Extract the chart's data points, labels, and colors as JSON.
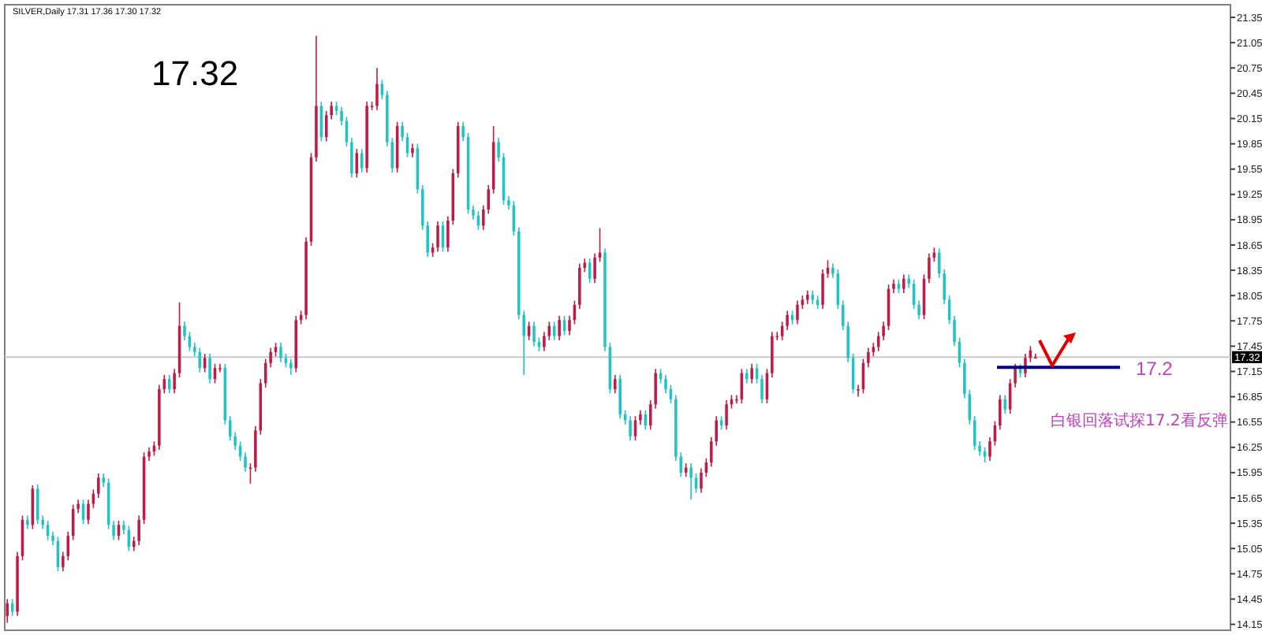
{
  "chart_data": {
    "type": "candlestick",
    "title": "SILVER,Daily 17.31 17.36 17.30 17.32",
    "subtitle": "17.32",
    "categories": [
      null,
      null,
      null,
      null,
      null,
      null,
      null,
      null,
      null,
      null,
      null,
      null,
      null,
      null,
      null,
      null,
      null,
      null,
      null,
      null,
      null,
      null,
      null,
      null,
      null,
      null,
      null,
      null,
      null,
      null,
      null,
      null,
      null,
      null,
      null,
      null,
      null,
      null,
      null,
      null,
      null,
      null,
      null,
      null,
      null,
      null,
      null,
      null,
      null,
      null,
      null,
      null,
      null,
      null,
      null,
      null,
      null,
      null,
      null,
      null,
      null,
      null,
      null,
      null,
      null,
      null,
      null,
      null,
      null,
      null,
      null,
      null,
      null,
      null,
      null,
      null,
      null,
      null,
      null,
      null,
      null,
      null,
      null,
      null,
      null,
      null,
      null,
      null,
      null,
      null,
      null,
      null,
      null,
      null,
      null,
      null,
      null,
      null,
      null,
      null,
      null,
      null,
      null,
      null,
      null,
      null,
      null,
      null,
      null,
      null,
      null,
      null,
      null,
      null,
      null,
      null,
      null,
      null,
      null,
      null,
      null,
      null,
      null,
      null,
      null,
      null,
      null,
      null,
      null,
      null,
      null,
      null,
      null,
      null,
      null,
      null,
      null,
      null,
      null,
      null,
      null,
      null,
      null,
      null,
      null,
      null,
      null,
      null,
      null,
      null,
      null,
      null,
      null,
      null,
      null,
      null,
      null,
      null,
      null,
      null,
      null,
      null,
      null,
      null,
      null,
      null,
      null,
      null,
      null,
      null,
      null,
      null,
      null,
      null,
      null,
      null,
      null,
      null,
      null,
      null,
      null,
      null,
      null,
      null,
      null,
      null,
      null,
      null,
      null,
      null,
      null,
      null,
      null,
      null,
      null,
      null,
      null,
      null,
      null,
      null,
      null,
      null,
      null,
      null,
      null,
      null,
      null,
      null,
      null,
      null,
      null,
      null,
      null,
      null,
      null,
      null,
      null,
      null,
      null,
      null,
      null,
      null,
      null,
      null,
      null,
      null,
      null,
      null,
      null,
      null,
      null,
      null,
      null,
      null,
      null,
      null,
      null,
      null,
      null,
      null,
      null,
      null
    ],
    "ohlc": [
      [
        14.25,
        14.45,
        14.17,
        14.4
      ],
      [
        14.4,
        14.45,
        14.25,
        14.3
      ],
      [
        14.3,
        15.01,
        14.25,
        14.96
      ],
      [
        14.96,
        15.44,
        14.91,
        15.39
      ],
      [
        15.39,
        15.44,
        15.28,
        15.33
      ],
      [
        15.33,
        15.8,
        15.28,
        15.76
      ],
      [
        15.76,
        15.81,
        15.34,
        15.39
      ],
      [
        15.39,
        15.44,
        15.28,
        15.33
      ],
      [
        15.33,
        15.38,
        15.15,
        15.2
      ],
      [
        15.2,
        15.25,
        15.09,
        15.14
      ],
      [
        15.14,
        15.19,
        14.78,
        14.83
      ],
      [
        14.83,
        15.01,
        14.78,
        14.96
      ],
      [
        14.96,
        15.25,
        14.91,
        15.2
      ],
      [
        15.2,
        15.57,
        15.15,
        15.52
      ],
      [
        15.52,
        15.63,
        15.47,
        15.58
      ],
      [
        15.58,
        15.63,
        15.34,
        15.39
      ],
      [
        15.39,
        15.63,
        15.34,
        15.58
      ],
      [
        15.58,
        15.75,
        15.53,
        15.7
      ],
      [
        15.7,
        15.94,
        15.65,
        15.89
      ],
      [
        15.89,
        15.94,
        15.78,
        15.83
      ],
      [
        15.83,
        15.88,
        15.28,
        15.33
      ],
      [
        15.33,
        15.38,
        15.15,
        15.2
      ],
      [
        15.2,
        15.38,
        15.15,
        15.33
      ],
      [
        15.33,
        15.38,
        15.22,
        15.27
      ],
      [
        15.27,
        15.32,
        15.02,
        15.07
      ],
      [
        15.07,
        15.19,
        15.02,
        15.14
      ],
      [
        15.14,
        15.44,
        15.09,
        15.39
      ],
      [
        15.39,
        16.19,
        15.34,
        16.14
      ],
      [
        16.14,
        16.25,
        16.09,
        16.2
      ],
      [
        16.2,
        16.32,
        16.15,
        16.27
      ],
      [
        16.27,
        16.99,
        16.22,
        16.94
      ],
      [
        16.94,
        17.11,
        16.89,
        17.06
      ],
      [
        17.06,
        17.11,
        16.89,
        16.94
      ],
      [
        16.94,
        17.18,
        16.89,
        17.13
      ],
      [
        17.13,
        17.97,
        17.08,
        17.69
      ],
      [
        17.69,
        17.74,
        17.52,
        17.57
      ],
      [
        17.57,
        17.62,
        17.39,
        17.44
      ],
      [
        17.44,
        17.49,
        17.33,
        17.38
      ],
      [
        17.38,
        17.43,
        17.14,
        17.19
      ],
      [
        17.19,
        17.36,
        17.14,
        17.31
      ],
      [
        17.31,
        17.36,
        17.01,
        17.06
      ],
      [
        17.06,
        17.24,
        17.01,
        17.19
      ],
      [
        17.19,
        17.24,
        17.14,
        17.19
      ],
      [
        17.19,
        17.24,
        16.52,
        16.57
      ],
      [
        16.57,
        16.62,
        16.33,
        16.38
      ],
      [
        16.38,
        16.43,
        16.22,
        16.27
      ],
      [
        16.27,
        16.32,
        16.09,
        16.14
      ],
      [
        16.14,
        16.19,
        15.96,
        16.01
      ],
      [
        16.01,
        16.06,
        15.82,
        16.01
      ],
      [
        16.01,
        16.5,
        15.96,
        16.45
      ],
      [
        16.45,
        17.06,
        16.4,
        17.01
      ],
      [
        17.01,
        17.3,
        16.96,
        17.25
      ],
      [
        17.25,
        17.43,
        17.2,
        17.38
      ],
      [
        17.38,
        17.49,
        17.33,
        17.44
      ],
      [
        17.44,
        17.49,
        17.26,
        17.31
      ],
      [
        17.31,
        17.36,
        17.2,
        17.25
      ],
      [
        17.25,
        17.3,
        17.11,
        17.19
      ],
      [
        17.19,
        17.81,
        17.14,
        17.76
      ],
      [
        17.76,
        17.87,
        17.71,
        17.82
      ],
      [
        17.82,
        18.74,
        17.77,
        18.69
      ],
      [
        18.69,
        19.74,
        18.64,
        19.69
      ],
      [
        19.69,
        21.13,
        19.64,
        20.3
      ],
      [
        20.3,
        20.35,
        19.88,
        19.93
      ],
      [
        19.93,
        20.24,
        19.88,
        20.19
      ],
      [
        20.19,
        20.35,
        20.14,
        20.3
      ],
      [
        20.3,
        20.35,
        20.19,
        20.24
      ],
      [
        20.24,
        20.29,
        20.07,
        20.12
      ],
      [
        20.12,
        20.17,
        19.82,
        19.87
      ],
      [
        19.87,
        19.92,
        19.45,
        19.5
      ],
      [
        19.5,
        19.79,
        19.45,
        19.74
      ],
      [
        19.74,
        19.79,
        19.51,
        19.56
      ],
      [
        19.56,
        20.35,
        19.51,
        20.3
      ],
      [
        20.3,
        20.35,
        20.25,
        20.3
      ],
      [
        20.3,
        20.75,
        20.25,
        20.56
      ],
      [
        20.56,
        20.61,
        20.38,
        20.43
      ],
      [
        20.43,
        20.48,
        19.82,
        19.87
      ],
      [
        19.87,
        19.92,
        19.51,
        19.56
      ],
      [
        19.56,
        20.11,
        19.51,
        20.06
      ],
      [
        20.06,
        20.11,
        19.88,
        19.93
      ],
      [
        19.93,
        19.98,
        19.69,
        19.74
      ],
      [
        19.74,
        19.85,
        19.69,
        19.8
      ],
      [
        19.8,
        19.85,
        19.26,
        19.31
      ],
      [
        19.31,
        19.36,
        18.83,
        18.88
      ],
      [
        18.88,
        18.93,
        18.51,
        18.56
      ],
      [
        18.56,
        18.67,
        18.51,
        18.62
      ],
      [
        18.62,
        18.93,
        18.57,
        18.88
      ],
      [
        18.88,
        18.93,
        18.57,
        18.62
      ],
      [
        18.62,
        18.99,
        18.57,
        18.94
      ],
      [
        18.94,
        19.55,
        18.89,
        19.5
      ],
      [
        19.5,
        20.11,
        19.45,
        20.06
      ],
      [
        20.06,
        20.11,
        19.88,
        19.93
      ],
      [
        19.93,
        19.98,
        19.02,
        19.07
      ],
      [
        19.07,
        19.12,
        18.95,
        19.0
      ],
      [
        19.0,
        19.05,
        18.83,
        18.88
      ],
      [
        18.88,
        19.12,
        18.83,
        19.07
      ],
      [
        19.07,
        19.36,
        19.02,
        19.31
      ],
      [
        19.31,
        20.06,
        19.26,
        19.87
      ],
      [
        19.87,
        19.92,
        19.64,
        19.69
      ],
      [
        19.69,
        19.74,
        19.13,
        19.18
      ],
      [
        19.18,
        19.23,
        19.07,
        19.12
      ],
      [
        19.12,
        19.17,
        18.76,
        18.81
      ],
      [
        18.81,
        18.86,
        17.77,
        17.82
      ],
      [
        17.82,
        17.87,
        17.11,
        17.57
      ],
      [
        17.57,
        17.74,
        17.52,
        17.69
      ],
      [
        17.69,
        17.74,
        17.45,
        17.5
      ],
      [
        17.5,
        17.55,
        17.39,
        17.44
      ],
      [
        17.44,
        17.62,
        17.39,
        17.57
      ],
      [
        17.57,
        17.74,
        17.52,
        17.69
      ],
      [
        17.69,
        17.74,
        17.52,
        17.57
      ],
      [
        17.57,
        17.81,
        17.52,
        17.76
      ],
      [
        17.76,
        17.81,
        17.58,
        17.63
      ],
      [
        17.63,
        17.81,
        17.58,
        17.76
      ],
      [
        17.76,
        17.99,
        17.71,
        17.94
      ],
      [
        17.94,
        18.43,
        17.89,
        18.38
      ],
      [
        18.38,
        18.49,
        18.33,
        18.44
      ],
      [
        18.44,
        18.49,
        18.2,
        18.25
      ],
      [
        18.25,
        18.55,
        18.2,
        18.5
      ],
      [
        18.5,
        18.85,
        18.45,
        18.56
      ],
      [
        18.56,
        18.61,
        17.39,
        17.44
      ],
      [
        17.44,
        17.49,
        16.89,
        16.94
      ],
      [
        16.94,
        17.11,
        16.89,
        17.06
      ],
      [
        17.06,
        17.11,
        16.59,
        16.64
      ],
      [
        16.64,
        16.69,
        16.52,
        16.57
      ],
      [
        16.57,
        16.62,
        16.33,
        16.38
      ],
      [
        16.38,
        16.62,
        16.33,
        16.57
      ],
      [
        16.57,
        16.69,
        16.52,
        16.64
      ],
      [
        16.64,
        16.69,
        16.46,
        16.51
      ],
      [
        16.51,
        16.81,
        16.46,
        16.76
      ],
      [
        16.76,
        17.18,
        16.71,
        17.13
      ],
      [
        17.13,
        17.18,
        17.01,
        17.06
      ],
      [
        17.06,
        17.11,
        16.89,
        16.94
      ],
      [
        16.94,
        16.99,
        16.77,
        16.82
      ],
      [
        16.82,
        16.87,
        16.09,
        16.14
      ],
      [
        16.14,
        16.19,
        15.9,
        15.95
      ],
      [
        15.95,
        16.06,
        15.9,
        16.01
      ],
      [
        16.01,
        16.06,
        15.63,
        15.89
      ],
      [
        15.89,
        15.94,
        15.71,
        15.76
      ],
      [
        15.76,
        16.0,
        15.71,
        15.95
      ],
      [
        15.95,
        16.12,
        15.9,
        16.07
      ],
      [
        16.07,
        16.37,
        16.02,
        16.32
      ],
      [
        16.32,
        16.62,
        16.27,
        16.57
      ],
      [
        16.57,
        16.62,
        16.46,
        16.51
      ],
      [
        16.51,
        16.81,
        16.46,
        16.76
      ],
      [
        16.76,
        16.87,
        16.71,
        16.82
      ],
      [
        16.82,
        16.87,
        16.77,
        16.82
      ],
      [
        16.82,
        17.18,
        16.77,
        17.13
      ],
      [
        17.13,
        17.18,
        17.01,
        17.06
      ],
      [
        17.06,
        17.24,
        17.01,
        17.19
      ],
      [
        17.19,
        17.24,
        17.01,
        17.06
      ],
      [
        17.06,
        17.11,
        16.77,
        16.82
      ],
      [
        16.82,
        17.18,
        16.77,
        17.13
      ],
      [
        17.13,
        17.62,
        17.08,
        17.57
      ],
      [
        17.57,
        17.62,
        17.52,
        17.57
      ],
      [
        17.57,
        17.74,
        17.52,
        17.69
      ],
      [
        17.69,
        17.87,
        17.64,
        17.82
      ],
      [
        17.82,
        17.87,
        17.71,
        17.76
      ],
      [
        17.76,
        17.99,
        17.71,
        17.94
      ],
      [
        17.94,
        18.05,
        17.89,
        18.0
      ],
      [
        18.0,
        18.11,
        17.95,
        18.06
      ],
      [
        18.06,
        18.11,
        17.95,
        18.0
      ],
      [
        18.0,
        18.05,
        17.89,
        17.94
      ],
      [
        17.94,
        18.36,
        17.89,
        18.31
      ],
      [
        18.31,
        18.47,
        18.26,
        18.38
      ],
      [
        18.38,
        18.43,
        18.26,
        18.31
      ],
      [
        18.31,
        18.36,
        17.89,
        17.94
      ],
      [
        17.94,
        17.99,
        17.64,
        17.69
      ],
      [
        17.69,
        17.74,
        17.26,
        17.31
      ],
      [
        17.31,
        17.36,
        16.89,
        16.94
      ],
      [
        16.94,
        16.99,
        16.85,
        16.94
      ],
      [
        16.94,
        17.3,
        16.89,
        17.25
      ],
      [
        17.25,
        17.43,
        17.2,
        17.38
      ],
      [
        17.38,
        17.49,
        17.33,
        17.44
      ],
      [
        17.44,
        17.62,
        17.39,
        17.57
      ],
      [
        17.57,
        17.74,
        17.52,
        17.69
      ],
      [
        17.69,
        18.18,
        17.64,
        18.13
      ],
      [
        18.13,
        18.24,
        18.08,
        18.19
      ],
      [
        18.19,
        18.24,
        18.08,
        18.13
      ],
      [
        18.13,
        18.3,
        18.08,
        18.25
      ],
      [
        18.25,
        18.3,
        18.14,
        18.19
      ],
      [
        18.19,
        18.24,
        17.89,
        17.94
      ],
      [
        17.94,
        17.99,
        17.77,
        17.82
      ],
      [
        17.82,
        18.3,
        17.77,
        18.25
      ],
      [
        18.25,
        18.55,
        18.2,
        18.5
      ],
      [
        18.5,
        18.62,
        18.45,
        18.56
      ],
      [
        18.56,
        18.61,
        18.26,
        18.31
      ],
      [
        18.31,
        18.36,
        17.95,
        18.0
      ],
      [
        18.0,
        18.05,
        17.71,
        17.76
      ],
      [
        17.76,
        17.81,
        17.45,
        17.5
      ],
      [
        17.5,
        17.55,
        17.2,
        17.25
      ],
      [
        17.25,
        17.3,
        16.83,
        16.88
      ],
      [
        16.88,
        16.93,
        16.52,
        16.57
      ],
      [
        16.57,
        16.62,
        16.22,
        16.27
      ],
      [
        16.27,
        16.32,
        16.15,
        16.2
      ],
      [
        16.2,
        16.25,
        16.07,
        16.14
      ],
      [
        16.14,
        16.37,
        16.09,
        16.32
      ],
      [
        16.32,
        16.56,
        16.27,
        16.51
      ],
      [
        16.51,
        16.87,
        16.46,
        16.82
      ],
      [
        16.82,
        16.87,
        16.65,
        16.7
      ],
      [
        16.7,
        17.06,
        16.65,
        17.01
      ],
      [
        17.01,
        17.24,
        16.96,
        17.19
      ],
      [
        17.19,
        17.24,
        17.08,
        17.13
      ],
      [
        17.13,
        17.36,
        17.08,
        17.31
      ],
      [
        17.31,
        17.45,
        17.26,
        17.4
      ],
      [
        17.31,
        17.36,
        17.3,
        17.32
      ],
      null,
      null,
      null,
      null,
      null,
      null,
      null,
      null,
      null,
      null,
      null,
      null,
      null,
      null,
      null,
      null,
      null,
      null,
      null,
      null,
      null,
      null,
      null,
      null,
      null,
      null,
      null,
      null,
      null,
      null,
      null,
      null,
      null,
      null,
      null,
      null,
      null,
      null
    ],
    "ylim": [
      14.08,
      21.5
    ],
    "yticks": [
      14.15,
      14.45,
      14.75,
      15.05,
      15.35,
      15.65,
      15.95,
      16.25,
      16.55,
      16.85,
      17.15,
      17.45,
      17.75,
      18.05,
      18.35,
      18.65,
      18.95,
      19.25,
      19.55,
      19.85,
      20.15,
      20.45,
      20.75,
      21.05,
      21.35
    ],
    "ref_lines": [
      {
        "axis": "y",
        "value": 17.32,
        "label": "17.32",
        "color": "#c8c8c8"
      },
      {
        "axis": "y",
        "value": 17.2,
        "label": "17.2",
        "color": "#000080"
      }
    ],
    "annotations": [
      "白银回落试探17.2看反弹"
    ]
  }
}
